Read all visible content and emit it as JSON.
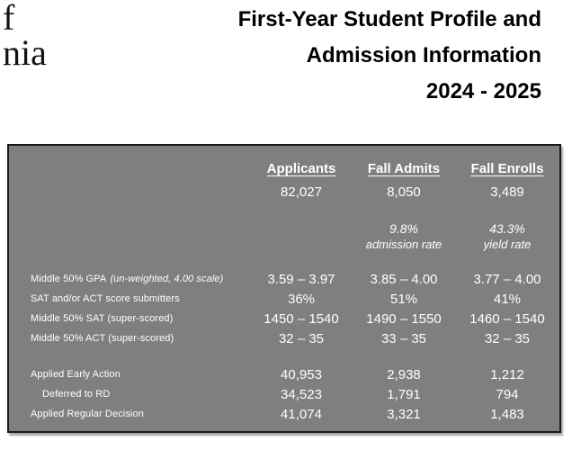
{
  "page": {
    "logo": {
      "line1": "f",
      "line2": "nia"
    },
    "title": {
      "line1": "First-Year Student Profile and",
      "line2": "Admission Information",
      "line3": "2024 - 2025"
    }
  },
  "table": {
    "headers": {
      "applicants": "Applicants",
      "fall_admits": "Fall Admits",
      "fall_enrolls": "Fall Enrolls"
    },
    "totals": {
      "applicants": "82,027",
      "fall_admits": "8,050",
      "fall_enrolls": "3,489"
    },
    "rates": {
      "admission": {
        "value": "9.8%",
        "label": "admission rate"
      },
      "yield": {
        "value": "43.3%",
        "label": "yield rate"
      }
    },
    "stat_rows": [
      {
        "label": "Middle 50% GPA",
        "note": "(un-weighted, 4.00 scale)",
        "values": [
          "3.59 – 3.97",
          "3.85 – 4.00",
          "3.77 – 4.00"
        ]
      },
      {
        "label": "SAT and/or ACT score submitters",
        "values": [
          "36%",
          "51%",
          "41%"
        ]
      },
      {
        "label": "Middle 50% SAT (super-scored)",
        "values": [
          "1450 – 1540",
          "1490 – 1550",
          "1460 – 1540"
        ]
      },
      {
        "label": "Middle 50% ACT (super-scored)",
        "values": [
          "32 – 35",
          "33 – 35",
          "32 – 35"
        ]
      }
    ],
    "application_rows": [
      {
        "label": "Applied Early Action",
        "values": [
          "40,953",
          "2,938",
          "1,212"
        ]
      },
      {
        "label": "Deferred to RD",
        "values": [
          "34,523",
          "1,791",
          "794"
        ]
      },
      {
        "label": "Applied Regular Decision",
        "values": [
          "41,074",
          "3,321",
          "1,483"
        ]
      }
    ]
  },
  "colors": {
    "table_bg": "#7f7f7f",
    "table_text": "#ffffff",
    "table_border": "#1a1a1a",
    "title_text": "#000000"
  }
}
